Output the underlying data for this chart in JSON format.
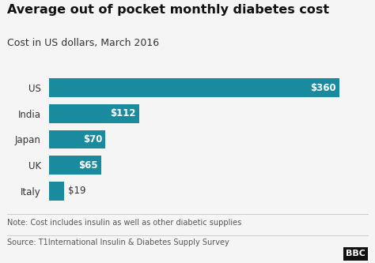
{
  "title": "Average out of pocket monthly diabetes cost",
  "subtitle": "Cost in US dollars, March 2016",
  "categories": [
    "US",
    "India",
    "Japan",
    "UK",
    "Italy"
  ],
  "values": [
    360,
    112,
    70,
    65,
    19
  ],
  "labels": [
    "$360",
    "$112",
    "$70",
    "$65",
    "$19"
  ],
  "bar_color": "#1a8a9e",
  "bar_height": 0.72,
  "background_color": "#f5f5f5",
  "title_fontsize": 11.5,
  "subtitle_fontsize": 9,
  "label_fontsize": 8.5,
  "axis_label_fontsize": 8.5,
  "note": "Note: Cost includes insulin as well as other diabetic supplies",
  "source": "Source: T1International Insulin & Diabetes Supply Survey",
  "bbc_logo": "BBC",
  "xlim": [
    0,
    390
  ],
  "note_fontsize": 7,
  "source_fontsize": 7
}
